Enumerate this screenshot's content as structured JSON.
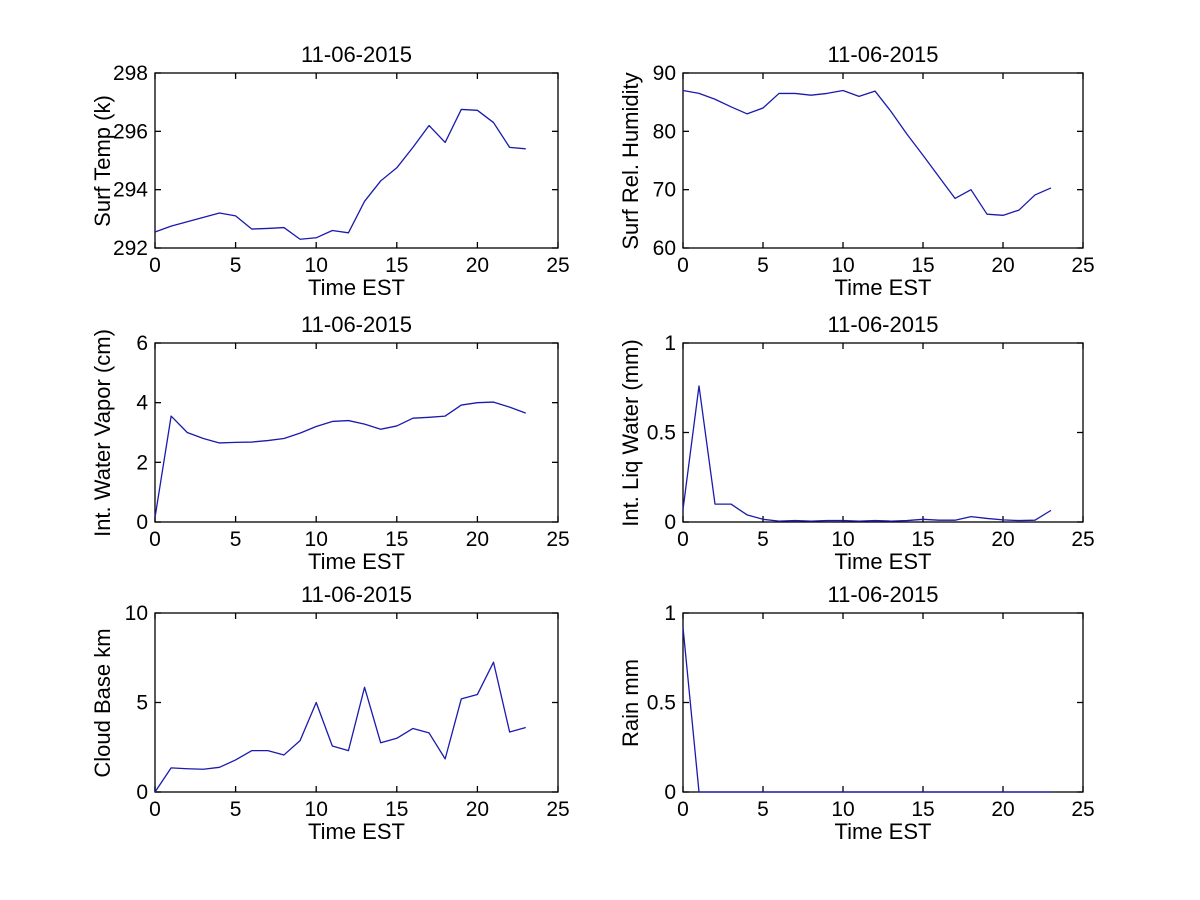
{
  "figure": {
    "date": "11-06-2015",
    "colors": {
      "line": "#1a1aae",
      "axis": "#000000",
      "text": "#000000",
      "background": "#ffffff"
    }
  },
  "chart_data": [
    {
      "id": "surf-temp",
      "type": "line",
      "title": "11-06-2015",
      "xlabel": "Time EST",
      "ylabel": "Surf Temp (k)",
      "xlim": [
        0,
        25
      ],
      "ylim": [
        292,
        298
      ],
      "xticks": [
        0,
        5,
        10,
        15,
        20,
        25
      ],
      "yticks": [
        292,
        294,
        296,
        298
      ],
      "x": [
        0,
        1,
        2,
        3,
        4,
        5,
        6,
        7,
        8,
        9,
        10,
        11,
        12,
        13,
        14,
        15,
        16,
        17,
        18,
        19,
        20,
        21,
        22,
        23
      ],
      "y": [
        292.55,
        292.75,
        292.9,
        293.05,
        293.2,
        293.1,
        292.65,
        292.67,
        292.7,
        292.3,
        292.35,
        292.6,
        292.52,
        293.6,
        294.3,
        294.75,
        295.45,
        296.2,
        295.62,
        296.75,
        296.72,
        296.3,
        295.45,
        295.4
      ]
    },
    {
      "id": "humidity",
      "type": "line",
      "title": "11-06-2015",
      "xlabel": "Time EST",
      "ylabel": "Surf Rel. Humidity",
      "xlim": [
        0,
        25
      ],
      "ylim": [
        60,
        90
      ],
      "xticks": [
        0,
        5,
        10,
        15,
        20,
        25
      ],
      "yticks": [
        60,
        70,
        80,
        90
      ],
      "x": [
        0,
        1,
        2,
        3,
        4,
        5,
        6,
        7,
        8,
        9,
        10,
        11,
        12,
        13,
        14,
        15,
        16,
        17,
        18,
        19,
        20,
        21,
        22,
        23
      ],
      "y": [
        87,
        86.5,
        85.5,
        84.2,
        83,
        84,
        86.5,
        86.5,
        86.2,
        86.5,
        87,
        86,
        86.9,
        83.4,
        79.5,
        75.9,
        72.2,
        68.5,
        70,
        65.8,
        65.6,
        66.5,
        69.1,
        70.3
      ]
    },
    {
      "id": "water-vapor",
      "type": "line",
      "title": "11-06-2015",
      "xlabel": "Time EST",
      "ylabel": "Int. Water Vapor (cm)",
      "xlim": [
        0,
        25
      ],
      "ylim": [
        0,
        6
      ],
      "xticks": [
        0,
        5,
        10,
        15,
        20,
        25
      ],
      "yticks": [
        0,
        2,
        4,
        6
      ],
      "x": [
        0,
        1,
        2,
        3,
        4,
        5,
        6,
        7,
        8,
        9,
        10,
        11,
        12,
        13,
        14,
        15,
        16,
        17,
        18,
        19,
        20,
        21,
        22,
        23
      ],
      "y": [
        0.15,
        3.55,
        3.0,
        2.8,
        2.65,
        2.67,
        2.68,
        2.73,
        2.8,
        2.98,
        3.2,
        3.37,
        3.4,
        3.28,
        3.11,
        3.22,
        3.48,
        3.51,
        3.55,
        3.92,
        4.0,
        4.02,
        3.85,
        3.65
      ]
    },
    {
      "id": "liquid-water",
      "type": "line",
      "title": "11-06-2015",
      "xlabel": "Time EST",
      "ylabel": "Int. Liq Water (mm)",
      "xlim": [
        0,
        25
      ],
      "ylim": [
        0,
        1
      ],
      "xticks": [
        0,
        5,
        10,
        15,
        20,
        25
      ],
      "yticks": [
        0,
        0.5,
        1
      ],
      "x": [
        0,
        1,
        2,
        3,
        4,
        5,
        6,
        7,
        8,
        9,
        10,
        11,
        12,
        13,
        14,
        15,
        16,
        17,
        18,
        19,
        20,
        21,
        22,
        23
      ],
      "y": [
        0.07,
        0.76,
        0.1,
        0.1,
        0.04,
        0.015,
        0.005,
        0.008,
        0.005,
        0.008,
        0.008,
        0.005,
        0.008,
        0.005,
        0.008,
        0.015,
        0.01,
        0.01,
        0.03,
        0.02,
        0.012,
        0.008,
        0.01,
        0.065
      ]
    },
    {
      "id": "cloud-base",
      "type": "line",
      "title": "11-06-2015",
      "xlabel": "Time EST",
      "ylabel": "Cloud Base km",
      "xlim": [
        0,
        25
      ],
      "ylim": [
        0,
        10
      ],
      "xticks": [
        0,
        5,
        10,
        15,
        20,
        25
      ],
      "yticks": [
        0,
        5,
        10
      ],
      "x": [
        0,
        1,
        2,
        3,
        4,
        5,
        6,
        7,
        8,
        9,
        10,
        11,
        12,
        13,
        14,
        15,
        16,
        17,
        18,
        19,
        20,
        21,
        22,
        23
      ],
      "y": [
        0,
        1.35,
        1.3,
        1.27,
        1.38,
        1.79,
        2.31,
        2.31,
        2.07,
        2.87,
        5.0,
        2.57,
        2.31,
        5.85,
        2.75,
        3.0,
        3.55,
        3.3,
        1.85,
        5.2,
        5.45,
        7.25,
        3.35,
        3.6
      ]
    },
    {
      "id": "rain",
      "type": "line",
      "title": "11-06-2015",
      "xlabel": "Time EST",
      "ylabel": "Rain mm",
      "xlim": [
        0,
        25
      ],
      "ylim": [
        0,
        1
      ],
      "xticks": [
        0,
        5,
        10,
        15,
        20,
        25
      ],
      "yticks": [
        0,
        0.5,
        1
      ],
      "x": [
        0,
        1,
        2,
        3,
        4,
        5,
        6,
        7,
        8,
        9,
        10,
        11,
        12,
        13,
        14,
        15,
        16,
        17,
        18,
        19,
        20,
        21,
        22,
        23
      ],
      "y": [
        0.92,
        0,
        0,
        0,
        0,
        0,
        0,
        0,
        0,
        0,
        0,
        0,
        0,
        0,
        0,
        0,
        0,
        0,
        0,
        0,
        0,
        0,
        0,
        0
      ]
    }
  ]
}
